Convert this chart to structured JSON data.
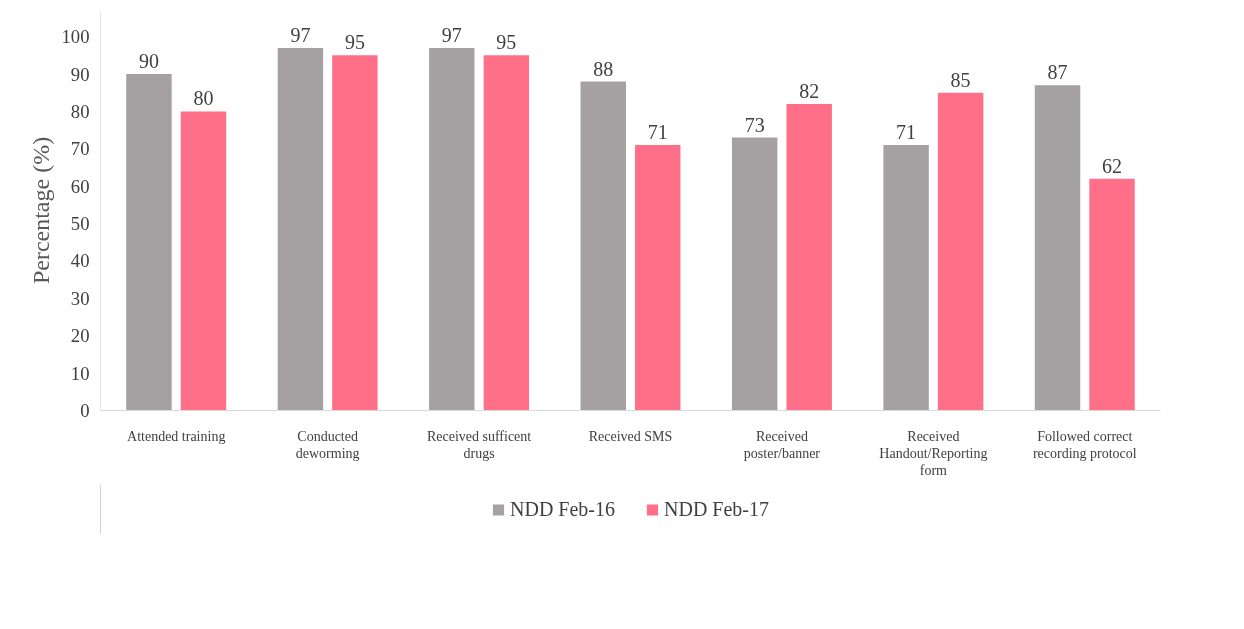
{
  "chart_data": {
    "type": "bar",
    "ylabel": "Percentage (%)",
    "categories": [
      "Attended training",
      "Conducted deworming",
      "Received sufficent drugs",
      "Received SMS",
      "Received poster/banner",
      "Received Handout/Reporting form",
      "Followed correct recording protocol"
    ],
    "series": [
      {
        "name": "NDD Feb-16",
        "color": "#a5a0a1",
        "values": [
          90,
          97,
          97,
          88,
          73,
          71,
          87
        ]
      },
      {
        "name": "NDD Feb-17",
        "color": "#ff6f88",
        "values": [
          80,
          95,
          95,
          71,
          82,
          85,
          62
        ]
      }
    ],
    "ylim": [
      0,
      107
    ],
    "yticks": [
      0,
      10,
      20,
      30,
      40,
      50,
      60,
      70,
      80,
      90,
      100
    ],
    "data_labels": true,
    "legend": "bottom",
    "grid": false
  }
}
